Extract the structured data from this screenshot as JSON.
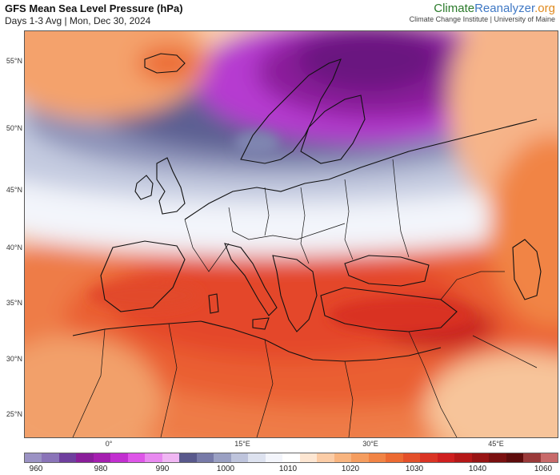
{
  "header": {
    "title": "GFS Mean Sea Level Pressure (hPa)",
    "subtitle": "Days 1-3 Avg | Mon, Dec 30, 2024"
  },
  "brand": {
    "name_part1": "Climate",
    "name_part2": "Reanalyzer",
    "name_part3": ".org",
    "subtitle": "Climate Change Institute | University of Maine"
  },
  "map": {
    "latitude_labels": [
      "55°N",
      "50°N",
      "45°N",
      "40°N",
      "35°N",
      "30°N",
      "25°N"
    ],
    "longitude_labels": [
      "0°",
      "15°E",
      "30°E",
      "45°E"
    ],
    "features": [
      "pressure-field",
      "coastlines",
      "country-borders"
    ]
  },
  "colorbar": {
    "labels": [
      "960",
      "980",
      "990",
      "1000",
      "1010",
      "1020",
      "1030",
      "1040",
      "1060"
    ],
    "colors": [
      "#9b92c4",
      "#8a74b8",
      "#6f3f9e",
      "#8a1e9a",
      "#a51fb0",
      "#c22fd0",
      "#de55e8",
      "#e889f0",
      "#f0b6f3",
      "#59598c",
      "#777aa8",
      "#9aa0c3",
      "#bec4dc",
      "#dde2ef",
      "#f3f5fb",
      "#ffffff",
      "#fde6d2",
      "#fbcca6",
      "#f8b47f",
      "#f59d5f",
      "#f18445",
      "#ec6a32",
      "#e4502a",
      "#da3424",
      "#cf1f1f",
      "#b51818",
      "#981414",
      "#7a1010",
      "#5e0c0c",
      "#9a3a3a",
      "#c86a6a"
    ]
  }
}
